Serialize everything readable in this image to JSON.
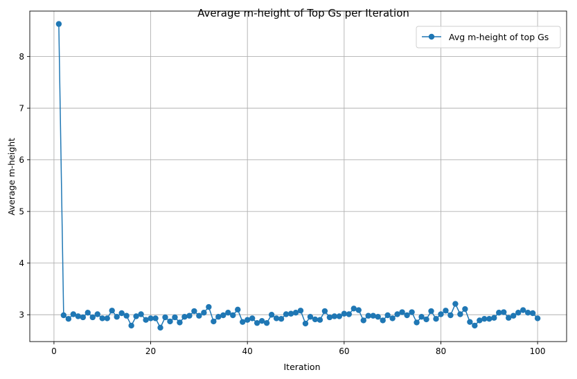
{
  "chart_data": {
    "type": "line",
    "title": "Average m-height of Top Gs per Iteration",
    "xlabel": "Iteration",
    "ylabel": "Average m-height",
    "xlim": [
      -5,
      106
    ],
    "ylim": [
      2.48,
      8.88
    ],
    "xticks": [
      0,
      20,
      40,
      60,
      80,
      100
    ],
    "yticks": [
      3,
      4,
      5,
      6,
      7,
      8
    ],
    "grid": true,
    "legend_position": "top-right",
    "series": [
      {
        "name": "Avg m-height of top Gs",
        "color": "#1f77b4",
        "marker": "circle",
        "x": [
          1,
          2,
          3,
          4,
          5,
          6,
          7,
          8,
          9,
          10,
          11,
          12,
          13,
          14,
          15,
          16,
          17,
          18,
          19,
          20,
          21,
          22,
          23,
          24,
          25,
          26,
          27,
          28,
          29,
          30,
          31,
          32,
          33,
          34,
          35,
          36,
          37,
          38,
          39,
          40,
          41,
          42,
          43,
          44,
          45,
          46,
          47,
          48,
          49,
          50,
          51,
          52,
          53,
          54,
          55,
          56,
          57,
          58,
          59,
          60,
          61,
          62,
          63,
          64,
          65,
          66,
          67,
          68,
          69,
          70,
          71,
          72,
          73,
          74,
          75,
          76,
          77,
          78,
          79,
          80,
          81,
          82,
          83,
          84,
          85,
          86,
          87,
          88,
          89,
          90,
          91,
          92,
          93,
          94,
          95,
          96,
          97,
          98,
          99,
          100
        ],
        "y": [
          8.63,
          2.99,
          2.92,
          3.01,
          2.97,
          2.95,
          3.04,
          2.95,
          3.01,
          2.93,
          2.93,
          3.08,
          2.96,
          3.03,
          2.98,
          2.79,
          2.97,
          3.01,
          2.9,
          2.93,
          2.93,
          2.75,
          2.95,
          2.87,
          2.95,
          2.85,
          2.96,
          2.98,
          3.07,
          2.98,
          3.04,
          3.15,
          2.87,
          2.96,
          2.99,
          3.04,
          2.99,
          3.1,
          2.86,
          2.9,
          2.93,
          2.84,
          2.88,
          2.84,
          3,
          2.93,
          2.92,
          3.01,
          3.02,
          3.04,
          3.08,
          2.83,
          2.96,
          2.91,
          2.9,
          3.07,
          2.95,
          2.97,
          2.97,
          3.02,
          3.01,
          3.12,
          3.09,
          2.89,
          2.98,
          2.98,
          2.96,
          2.89,
          2.99,
          2.93,
          3.01,
          3.05,
          2.99,
          3.05,
          2.85,
          2.96,
          2.91,
          3.07,
          2.92,
          3.01,
          3.08,
          2.99,
          3.21,
          3.01,
          3.11,
          2.86,
          2.79,
          2.89,
          2.92,
          2.92,
          2.94,
          3.04,
          3.05,
          2.94,
          2.98,
          3.04,
          3.09,
          3.04,
          3.03,
          2.93
        ]
      }
    ]
  }
}
